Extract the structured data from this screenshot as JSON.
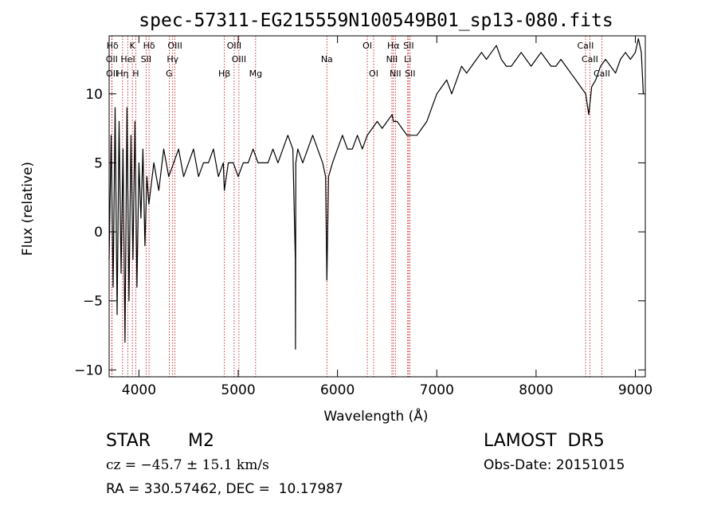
{
  "chart_data": {
    "type": "line",
    "title": "spec-57311-EG215559N100549B01_sp13-080.fits",
    "xlabel": "Wavelength (Å)",
    "ylabel": "Flux (relative)",
    "xlim": [
      3700,
      9100
    ],
    "ylim": [
      -10.5,
      14.2
    ],
    "xticks": [
      4000,
      5000,
      6000,
      7000,
      8000,
      9000
    ],
    "yticks": [
      -10,
      -5,
      0,
      5,
      10
    ],
    "grid": false,
    "series": [
      {
        "x": [
          3700,
          3720,
          3740,
          3760,
          3780,
          3800,
          3820,
          3840,
          3860,
          3880,
          3900,
          3920,
          3940,
          3960,
          3980,
          4000,
          4020,
          4040,
          4060,
          4080,
          4100,
          4150,
          4200,
          4250,
          4300,
          4350,
          4400,
          4450,
          4500,
          4550,
          4600,
          4650,
          4700,
          4750,
          4800,
          4850,
          4860,
          4900,
          4950,
          5000,
          5050,
          5100,
          5150,
          5200,
          5250,
          5300,
          5350,
          5400,
          5450,
          5500,
          5550,
          5575,
          5577,
          5580,
          5600,
          5650,
          5700,
          5750,
          5800,
          5850,
          5880,
          5893,
          5910,
          5950,
          6000,
          6050,
          6100,
          6150,
          6200,
          6250,
          6300,
          6350,
          6400,
          6450,
          6500,
          6550,
          6563,
          6600,
          6650,
          6700,
          6750,
          6800,
          6850,
          6900,
          6950,
          7000,
          7050,
          7100,
          7150,
          7200,
          7250,
          7300,
          7350,
          7400,
          7450,
          7500,
          7550,
          7600,
          7650,
          7700,
          7750,
          7800,
          7850,
          7900,
          7950,
          8000,
          8050,
          8100,
          8150,
          8200,
          8250,
          8300,
          8350,
          8400,
          8450,
          8500,
          8530,
          8560,
          8600,
          8650,
          8700,
          8750,
          8800,
          8850,
          8900,
          8950,
          9000,
          9030,
          9060,
          9080
        ],
        "y": [
          -2,
          7,
          -4,
          9,
          -6,
          8,
          -3,
          6,
          -8,
          9,
          -5,
          7,
          -2,
          8,
          -4,
          5,
          1,
          6,
          -1,
          4,
          2,
          5,
          3,
          6,
          4,
          5,
          6,
          4,
          5,
          6,
          4,
          5,
          5,
          6,
          4,
          5,
          3,
          5,
          5,
          4,
          5,
          5,
          6,
          5,
          5,
          5,
          6,
          5,
          6,
          7,
          6,
          -2,
          -8.5,
          5,
          6,
          5,
          6,
          7,
          6,
          5,
          4,
          -3.5,
          4,
          5,
          6,
          7,
          6,
          6,
          7,
          6,
          7,
          7.5,
          8,
          7.5,
          8,
          8.5,
          8,
          8,
          7.5,
          7,
          7,
          7,
          7.5,
          8,
          9,
          10,
          10.5,
          11,
          10,
          11,
          12,
          11.5,
          12,
          12.5,
          13,
          12.5,
          13,
          13.5,
          12.5,
          12,
          12,
          12.5,
          13,
          12.5,
          12,
          12.5,
          13,
          12.5,
          12,
          12,
          12.5,
          12,
          11.5,
          11,
          10.5,
          10,
          8.5,
          10.5,
          11,
          12,
          12.5,
          12,
          11.5,
          12.5,
          13,
          12.5,
          13,
          14,
          13,
          10
        ]
      }
    ],
    "line_ids": [
      {
        "label": "Hδ",
        "x": 3734,
        "row": 0
      },
      {
        "label": "K",
        "x": 3934,
        "row": 0
      },
      {
        "label": "Hδ",
        "x": 4102,
        "row": 0
      },
      {
        "label": "OIII",
        "x": 4363,
        "row": 0
      },
      {
        "label": "OIII",
        "x": 4959,
        "row": 0
      },
      {
        "label": "OI",
        "x": 6300,
        "row": 0
      },
      {
        "label": "Hα",
        "x": 6563,
        "row": 0
      },
      {
        "label": "SII",
        "x": 6716,
        "row": 0
      },
      {
        "label": "CaII",
        "x": 8498,
        "row": 0
      },
      {
        "label": "OII",
        "x": 3727,
        "row": 1
      },
      {
        "label": "HeI",
        "x": 3889,
        "row": 1
      },
      {
        "label": "SII",
        "x": 4072,
        "row": 1
      },
      {
        "label": "Hγ",
        "x": 4340,
        "row": 1
      },
      {
        "label": "OIII",
        "x": 5007,
        "row": 1
      },
      {
        "label": "Na",
        "x": 5893,
        "row": 1
      },
      {
        "label": "NII",
        "x": 6548,
        "row": 1
      },
      {
        "label": "Li",
        "x": 6707,
        "row": 1
      },
      {
        "label": "CaII",
        "x": 8542,
        "row": 1
      },
      {
        "label": "OII",
        "x": 3729,
        "row": 2
      },
      {
        "label": "Hη",
        "x": 3835,
        "row": 2
      },
      {
        "label": "H",
        "x": 3968,
        "row": 2
      },
      {
        "label": "G",
        "x": 4305,
        "row": 2
      },
      {
        "label": "Hβ",
        "x": 4861,
        "row": 2
      },
      {
        "label": "Mg",
        "x": 5175,
        "row": 2
      },
      {
        "label": "OI",
        "x": 6364,
        "row": 2
      },
      {
        "label": "NII",
        "x": 6583,
        "row": 2
      },
      {
        "label": "SII",
        "x": 6731,
        "row": 2
      },
      {
        "label": "CaII",
        "x": 8662,
        "row": 2
      }
    ],
    "line_markers": [
      3727,
      3729,
      3835,
      3889,
      3934,
      3968,
      4072,
      4102,
      4305,
      4340,
      4363,
      4861,
      4959,
      5007,
      5175,
      5893,
      6300,
      6364,
      6548,
      6563,
      6583,
      6707,
      6716,
      6731,
      8498,
      8542,
      8662
    ],
    "colors": {
      "spectrum": "#000000",
      "markers": "#c00000",
      "axes": "#000000"
    }
  },
  "info": {
    "object_class": "STAR",
    "subclass": "M2",
    "survey": "LAMOST  DR5",
    "velocity": "cz = −45.7 ± 15.1 km/s",
    "obs_date": "Obs-Date: 20151015",
    "coords": "RA = 330.57462, DEC =  10.17987"
  }
}
